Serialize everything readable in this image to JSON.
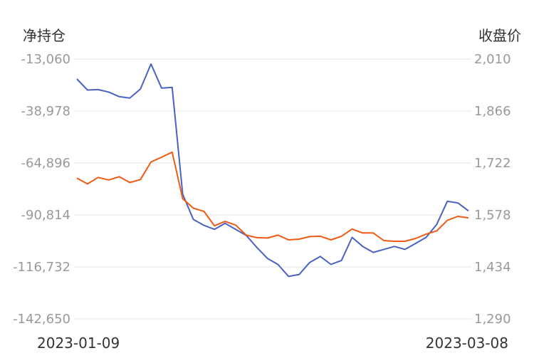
{
  "chart_data": {
    "type": "line",
    "y_left_label": "净持仓",
    "y_right_label": "收盘价",
    "x_start_label": "2023-01-09",
    "x_end_label": "2023-03-08",
    "y_left_ticks": [
      "-13,060",
      "-38,978",
      "-64,896",
      "-90,814",
      "-116,732",
      "-142,650"
    ],
    "y_right_ticks": [
      "2,010",
      "1,866",
      "1,722",
      "1,578",
      "1,434",
      "1,290"
    ],
    "y_left_range": [
      -142650,
      -13060
    ],
    "y_right_range": [
      1290,
      2010
    ],
    "series": [
      {
        "axis": "left",
        "color": "#4a62c4",
        "values": [
          -23000,
          -28500,
          -28300,
          -29500,
          -31800,
          -32500,
          -28000,
          -15500,
          -27500,
          -27200,
          -80500,
          -93000,
          -96000,
          -98000,
          -95000,
          -98000,
          -101000,
          -107000,
          -112500,
          -115500,
          -121500,
          -120500,
          -114500,
          -111500,
          -115500,
          -113500,
          -102000,
          -106500,
          -109500,
          -108000,
          -106500,
          -108000,
          -105000,
          -102000,
          -95500,
          -84000,
          -84800,
          -88800
        ]
      },
      {
        "axis": "right",
        "color": "#f05a13",
        "values": [
          1680,
          1664,
          1682,
          1675,
          1684,
          1668,
          1676,
          1725,
          1738,
          1752,
          1623,
          1597,
          1588,
          1548,
          1560,
          1550,
          1522,
          1515,
          1514,
          1522,
          1509,
          1511,
          1518,
          1519,
          1509,
          1519,
          1539,
          1528,
          1528,
          1507,
          1505,
          1505,
          1513,
          1525,
          1534,
          1563,
          1574,
          1570
        ]
      }
    ],
    "grid": true
  }
}
